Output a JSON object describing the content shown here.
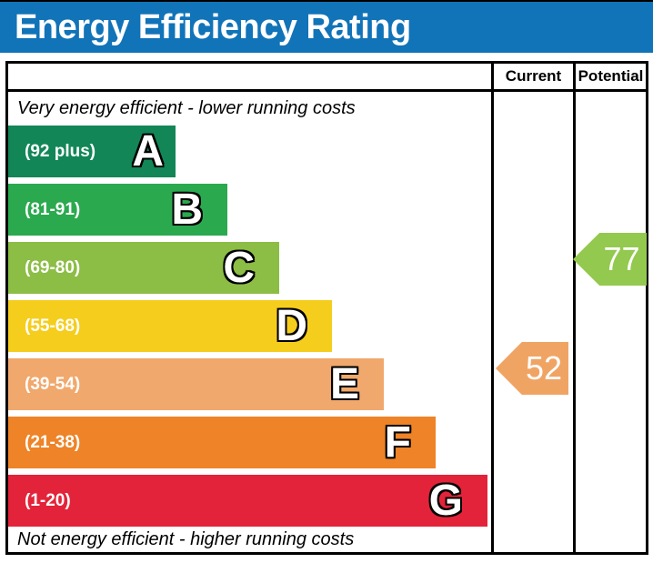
{
  "header": {
    "title": "Energy Efficiency Rating",
    "background_color": "#1173B8"
  },
  "table": {
    "columns": [
      "Current",
      "Potential"
    ]
  },
  "notes": {
    "top": "Very energy efficient - lower running costs",
    "bottom": "Not energy efficient - higher running costs"
  },
  "ratings": {
    "current": {
      "value": "52",
      "band": "E",
      "color": "#F0A464"
    },
    "potential": {
      "value": "77",
      "band": "C",
      "color": "#93C94E"
    }
  },
  "chart_data": {
    "type": "epc-energy-rating-bar",
    "title": "Energy Efficiency Rating",
    "bands": [
      {
        "letter": "A",
        "range": "(92 plus)",
        "min": 92,
        "max": 100,
        "color": "#128656"
      },
      {
        "letter": "B",
        "range": "(81-91)",
        "min": 81,
        "max": 91,
        "color": "#2BA94F"
      },
      {
        "letter": "C",
        "range": "(69-80)",
        "min": 69,
        "max": 80,
        "color": "#8CBD45"
      },
      {
        "letter": "D",
        "range": "(55-68)",
        "min": 55,
        "max": 68,
        "color": "#F5CD1C"
      },
      {
        "letter": "E",
        "range": "(39-54)",
        "min": 39,
        "max": 54,
        "color": "#F1A86C"
      },
      {
        "letter": "F",
        "range": "(21-38)",
        "min": 21,
        "max": 38,
        "color": "#EE8327"
      },
      {
        "letter": "G",
        "range": "(1-20)",
        "min": 1,
        "max": 20,
        "color": "#E32339"
      }
    ],
    "current": 52,
    "potential": 77,
    "legend_position": "columns-right",
    "grid": false
  }
}
